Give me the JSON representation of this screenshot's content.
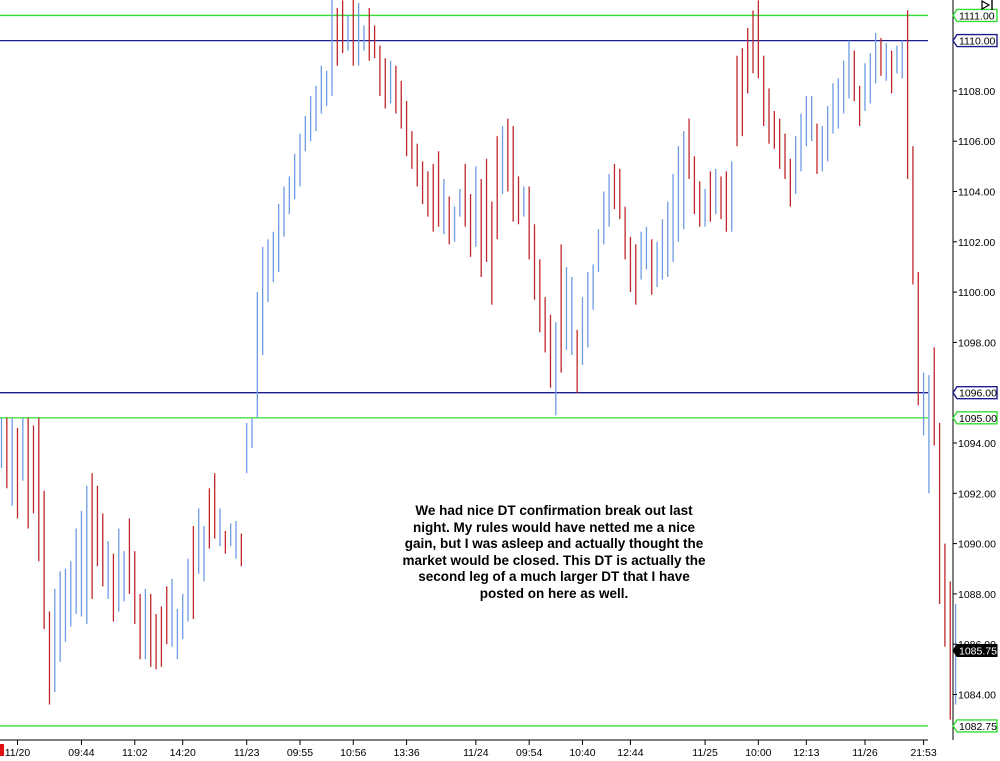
{
  "chart_data": {
    "type": "bar",
    "style": "ohlc-bars",
    "ylim": [
      1082.0,
      1112.6
    ],
    "y_ticks": [
      "1084.00",
      "1086.00",
      "1088.00",
      "1090.00",
      "1092.00",
      "1094.00",
      "1098.00",
      "1100.00",
      "1102.00",
      "1104.00",
      "1106.00",
      "1108.00"
    ],
    "x_ticks": [
      {
        "label": "11/20",
        "bar": 3
      },
      {
        "label": "09:44",
        "bar": 15
      },
      {
        "label": "11:02",
        "bar": 25
      },
      {
        "label": "14:20",
        "bar": 34
      },
      {
        "label": "11/23",
        "bar": 46
      },
      {
        "label": "09:55",
        "bar": 56
      },
      {
        "label": "10:56",
        "bar": 66
      },
      {
        "label": "13:36",
        "bar": 76
      },
      {
        "label": "11/24",
        "bar": 89
      },
      {
        "label": "09:54",
        "bar": 99
      },
      {
        "label": "10:40",
        "bar": 109
      },
      {
        "label": "12:44",
        "bar": 118
      },
      {
        "label": "11/25",
        "bar": 132
      },
      {
        "label": "10:00",
        "bar": 142
      },
      {
        "label": "12:13",
        "bar": 151
      },
      {
        "label": "11/26",
        "bar": 162
      },
      {
        "label": "21:53",
        "bar": 173
      }
    ],
    "horizontal_lines": [
      {
        "value": 1111.0,
        "label": "1111.00",
        "color": "#33dd33"
      },
      {
        "value": 1110.0,
        "label": "1110.00",
        "color": "#1c1c8c"
      },
      {
        "value": 1096.0,
        "label": "1096.00",
        "color": "#1c1c8c"
      },
      {
        "value": 1095.0,
        "label": "1095.00",
        "color": "#33dd33"
      },
      {
        "value": 1082.75,
        "label": "1082.75",
        "color": "#33dd33"
      }
    ],
    "last_price": {
      "value": 1085.75,
      "label": "1085.75"
    },
    "colors": {
      "up": "#6e9be6",
      "down": "#c0262b"
    },
    "bars": [
      {
        "l": 1093.0,
        "h": 1095.0,
        "d": "up"
      },
      {
        "l": 1092.2,
        "h": 1095.0,
        "d": "down"
      },
      {
        "l": 1091.5,
        "h": 1095.0,
        "d": "up"
      },
      {
        "l": 1091.0,
        "h": 1094.6,
        "d": "down"
      },
      {
        "l": 1092.5,
        "h": 1095.0,
        "d": "up"
      },
      {
        "l": 1090.6,
        "h": 1095.0,
        "d": "down"
      },
      {
        "l": 1091.2,
        "h": 1094.7,
        "d": "down"
      },
      {
        "l": 1089.3,
        "h": 1095.0,
        "d": "down"
      },
      {
        "l": 1086.6,
        "h": 1092.1,
        "d": "down"
      },
      {
        "l": 1083.6,
        "h": 1087.3,
        "d": "down"
      },
      {
        "l": 1084.1,
        "h": 1088.2,
        "d": "up"
      },
      {
        "l": 1085.3,
        "h": 1088.9,
        "d": "up"
      },
      {
        "l": 1086.1,
        "h": 1089.0,
        "d": "up"
      },
      {
        "l": 1086.7,
        "h": 1089.3,
        "d": "up"
      },
      {
        "l": 1087.2,
        "h": 1090.6,
        "d": "up"
      },
      {
        "l": 1087.1,
        "h": 1091.3,
        "d": "up"
      },
      {
        "l": 1086.8,
        "h": 1092.3,
        "d": "up"
      },
      {
        "l": 1087.8,
        "h": 1092.8,
        "d": "down"
      },
      {
        "l": 1089.1,
        "h": 1092.3,
        "d": "down"
      },
      {
        "l": 1088.3,
        "h": 1091.2,
        "d": "down"
      },
      {
        "l": 1087.8,
        "h": 1090.1,
        "d": "up"
      },
      {
        "l": 1086.9,
        "h": 1089.6,
        "d": "down"
      },
      {
        "l": 1087.3,
        "h": 1090.6,
        "d": "up"
      },
      {
        "l": 1087.7,
        "h": 1089.7,
        "d": "up"
      },
      {
        "l": 1088.0,
        "h": 1091.0,
        "d": "down"
      },
      {
        "l": 1086.8,
        "h": 1089.7,
        "d": "down"
      },
      {
        "l": 1085.4,
        "h": 1088.0,
        "d": "down"
      },
      {
        "l": 1085.4,
        "h": 1088.2,
        "d": "up"
      },
      {
        "l": 1085.1,
        "h": 1088.0,
        "d": "down"
      },
      {
        "l": 1085.0,
        "h": 1087.2,
        "d": "down"
      },
      {
        "l": 1085.1,
        "h": 1087.5,
        "d": "down"
      },
      {
        "l": 1086.0,
        "h": 1088.3,
        "d": "down"
      },
      {
        "l": 1085.9,
        "h": 1088.6,
        "d": "up"
      },
      {
        "l": 1085.4,
        "h": 1087.4,
        "d": "up"
      },
      {
        "l": 1086.2,
        "h": 1088.0,
        "d": "up"
      },
      {
        "l": 1086.9,
        "h": 1089.4,
        "d": "up"
      },
      {
        "l": 1087.0,
        "h": 1090.7,
        "d": "down"
      },
      {
        "l": 1088.8,
        "h": 1091.4,
        "d": "up"
      },
      {
        "l": 1088.5,
        "h": 1090.7,
        "d": "up"
      },
      {
        "l": 1089.8,
        "h": 1092.2,
        "d": "down"
      },
      {
        "l": 1090.2,
        "h": 1092.8,
        "d": "down"
      },
      {
        "l": 1089.9,
        "h": 1091.4,
        "d": "up"
      },
      {
        "l": 1089.6,
        "h": 1090.5,
        "d": "down"
      },
      {
        "l": 1089.9,
        "h": 1090.8,
        "d": "up"
      },
      {
        "l": 1089.4,
        "h": 1090.9,
        "d": "up"
      },
      {
        "l": 1089.1,
        "h": 1090.4,
        "d": "down"
      },
      {
        "l": 1092.8,
        "h": 1094.8,
        "d": "up"
      },
      {
        "l": 1093.8,
        "h": 1095.0,
        "d": "up"
      },
      {
        "l": 1095.0,
        "h": 1100.0,
        "d": "up"
      },
      {
        "l": 1097.5,
        "h": 1101.8,
        "d": "up"
      },
      {
        "l": 1099.6,
        "h": 1102.1,
        "d": "up"
      },
      {
        "l": 1100.4,
        "h": 1102.4,
        "d": "up"
      },
      {
        "l": 1100.8,
        "h": 1103.5,
        "d": "up"
      },
      {
        "l": 1102.2,
        "h": 1104.2,
        "d": "up"
      },
      {
        "l": 1103.1,
        "h": 1104.6,
        "d": "up"
      },
      {
        "l": 1103.7,
        "h": 1105.5,
        "d": "up"
      },
      {
        "l": 1104.2,
        "h": 1106.3,
        "d": "up"
      },
      {
        "l": 1105.6,
        "h": 1107.0,
        "d": "up"
      },
      {
        "l": 1106.0,
        "h": 1107.8,
        "d": "up"
      },
      {
        "l": 1106.4,
        "h": 1108.2,
        "d": "up"
      },
      {
        "l": 1107.1,
        "h": 1109.0,
        "d": "up"
      },
      {
        "l": 1107.4,
        "h": 1108.8,
        "d": "up"
      },
      {
        "l": 1107.8,
        "h": 1112.4,
        "d": "up"
      },
      {
        "l": 1109.0,
        "h": 1111.3,
        "d": "down"
      },
      {
        "l": 1109.5,
        "h": 1111.6,
        "d": "down"
      },
      {
        "l": 1109.6,
        "h": 1111.0,
        "d": "up"
      },
      {
        "l": 1109.0,
        "h": 1112.2,
        "d": "down"
      },
      {
        "l": 1109.0,
        "h": 1111.5,
        "d": "up"
      },
      {
        "l": 1109.6,
        "h": 1110.6,
        "d": "up"
      },
      {
        "l": 1109.2,
        "h": 1111.3,
        "d": "down"
      },
      {
        "l": 1109.3,
        "h": 1110.6,
        "d": "down"
      },
      {
        "l": 1107.8,
        "h": 1109.8,
        "d": "down"
      },
      {
        "l": 1107.3,
        "h": 1109.3,
        "d": "down"
      },
      {
        "l": 1107.5,
        "h": 1109.2,
        "d": "up"
      },
      {
        "l": 1107.1,
        "h": 1109.0,
        "d": "down"
      },
      {
        "l": 1106.5,
        "h": 1108.4,
        "d": "down"
      },
      {
        "l": 1105.4,
        "h": 1107.6,
        "d": "down"
      },
      {
        "l": 1104.9,
        "h": 1106.4,
        "d": "down"
      },
      {
        "l": 1104.2,
        "h": 1105.9,
        "d": "down"
      },
      {
        "l": 1103.5,
        "h": 1105.2,
        "d": "down"
      },
      {
        "l": 1103.0,
        "h": 1104.8,
        "d": "down"
      },
      {
        "l": 1102.4,
        "h": 1105.1,
        "d": "down"
      },
      {
        "l": 1102.6,
        "h": 1105.6,
        "d": "down"
      },
      {
        "l": 1102.3,
        "h": 1104.5,
        "d": "up"
      },
      {
        "l": 1101.9,
        "h": 1103.8,
        "d": "down"
      },
      {
        "l": 1102.0,
        "h": 1103.4,
        "d": "up"
      },
      {
        "l": 1103.0,
        "h": 1104.1,
        "d": "up"
      },
      {
        "l": 1102.6,
        "h": 1105.1,
        "d": "down"
      },
      {
        "l": 1101.4,
        "h": 1103.9,
        "d": "down"
      },
      {
        "l": 1101.8,
        "h": 1105.0,
        "d": "up"
      },
      {
        "l": 1100.6,
        "h": 1104.5,
        "d": "down"
      },
      {
        "l": 1101.2,
        "h": 1105.3,
        "d": "down"
      },
      {
        "l": 1099.5,
        "h": 1103.6,
        "d": "down"
      },
      {
        "l": 1102.1,
        "h": 1106.2,
        "d": "down"
      },
      {
        "l": 1103.9,
        "h": 1106.6,
        "d": "up"
      },
      {
        "l": 1104.0,
        "h": 1106.9,
        "d": "down"
      },
      {
        "l": 1102.8,
        "h": 1106.6,
        "d": "down"
      },
      {
        "l": 1102.7,
        "h": 1104.6,
        "d": "down"
      },
      {
        "l": 1103.0,
        "h": 1104.2,
        "d": "up"
      },
      {
        "l": 1101.3,
        "h": 1104.2,
        "d": "down"
      },
      {
        "l": 1099.7,
        "h": 1102.7,
        "d": "down"
      },
      {
        "l": 1098.4,
        "h": 1101.3,
        "d": "down"
      },
      {
        "l": 1097.6,
        "h": 1099.8,
        "d": "down"
      },
      {
        "l": 1096.2,
        "h": 1099.1,
        "d": "down"
      },
      {
        "l": 1095.1,
        "h": 1098.8,
        "d": "up"
      },
      {
        "l": 1096.8,
        "h": 1101.9,
        "d": "down"
      },
      {
        "l": 1097.7,
        "h": 1101.0,
        "d": "up"
      },
      {
        "l": 1097.5,
        "h": 1100.6,
        "d": "up"
      },
      {
        "l": 1096.0,
        "h": 1098.5,
        "d": "down"
      },
      {
        "l": 1097.1,
        "h": 1099.8,
        "d": "up"
      },
      {
        "l": 1097.8,
        "h": 1100.8,
        "d": "up"
      },
      {
        "l": 1099.3,
        "h": 1101.1,
        "d": "up"
      },
      {
        "l": 1100.8,
        "h": 1102.5,
        "d": "up"
      },
      {
        "l": 1101.9,
        "h": 1104.0,
        "d": "up"
      },
      {
        "l": 1102.6,
        "h": 1104.7,
        "d": "up"
      },
      {
        "l": 1103.3,
        "h": 1105.1,
        "d": "down"
      },
      {
        "l": 1102.9,
        "h": 1104.9,
        "d": "down"
      },
      {
        "l": 1101.3,
        "h": 1103.4,
        "d": "down"
      },
      {
        "l": 1100.0,
        "h": 1102.2,
        "d": "down"
      },
      {
        "l": 1099.5,
        "h": 1101.9,
        "d": "down"
      },
      {
        "l": 1100.5,
        "h": 1102.4,
        "d": "up"
      },
      {
        "l": 1100.9,
        "h": 1102.6,
        "d": "up"
      },
      {
        "l": 1099.9,
        "h": 1102.1,
        "d": "down"
      },
      {
        "l": 1100.2,
        "h": 1102.0,
        "d": "up"
      },
      {
        "l": 1100.5,
        "h": 1102.9,
        "d": "up"
      },
      {
        "l": 1100.6,
        "h": 1103.6,
        "d": "up"
      },
      {
        "l": 1101.2,
        "h": 1104.7,
        "d": "up"
      },
      {
        "l": 1102.0,
        "h": 1105.8,
        "d": "up"
      },
      {
        "l": 1102.5,
        "h": 1106.4,
        "d": "up"
      },
      {
        "l": 1104.5,
        "h": 1106.9,
        "d": "down"
      },
      {
        "l": 1103.1,
        "h": 1105.4,
        "d": "down"
      },
      {
        "l": 1102.6,
        "h": 1104.4,
        "d": "down"
      },
      {
        "l": 1102.6,
        "h": 1104.1,
        "d": "up"
      },
      {
        "l": 1102.8,
        "h": 1104.8,
        "d": "down"
      },
      {
        "l": 1103.1,
        "h": 1104.9,
        "d": "up"
      },
      {
        "l": 1102.9,
        "h": 1104.6,
        "d": "down"
      },
      {
        "l": 1102.4,
        "h": 1104.8,
        "d": "down"
      },
      {
        "l": 1102.4,
        "h": 1105.2,
        "d": "up"
      },
      {
        "l": 1105.8,
        "h": 1109.4,
        "d": "down"
      },
      {
        "l": 1106.2,
        "h": 1109.7,
        "d": "down"
      },
      {
        "l": 1107.9,
        "h": 1110.5,
        "d": "down"
      },
      {
        "l": 1108.7,
        "h": 1111.2,
        "d": "down"
      },
      {
        "l": 1108.5,
        "h": 1111.6,
        "d": "down"
      },
      {
        "l": 1106.6,
        "h": 1109.4,
        "d": "down"
      },
      {
        "l": 1105.9,
        "h": 1108.1,
        "d": "down"
      },
      {
        "l": 1105.7,
        "h": 1107.2,
        "d": "down"
      },
      {
        "l": 1104.9,
        "h": 1106.9,
        "d": "down"
      },
      {
        "l": 1104.5,
        "h": 1106.3,
        "d": "down"
      },
      {
        "l": 1103.4,
        "h": 1105.3,
        "d": "down"
      },
      {
        "l": 1103.9,
        "h": 1106.2,
        "d": "up"
      },
      {
        "l": 1104.8,
        "h": 1107.1,
        "d": "up"
      },
      {
        "l": 1105.8,
        "h": 1107.8,
        "d": "up"
      },
      {
        "l": 1106.0,
        "h": 1107.8,
        "d": "up"
      },
      {
        "l": 1104.7,
        "h": 1106.7,
        "d": "down"
      },
      {
        "l": 1104.8,
        "h": 1106.6,
        "d": "up"
      },
      {
        "l": 1105.2,
        "h": 1107.4,
        "d": "up"
      },
      {
        "l": 1106.3,
        "h": 1108.3,
        "d": "up"
      },
      {
        "l": 1106.5,
        "h": 1108.5,
        "d": "up"
      },
      {
        "l": 1107.1,
        "h": 1109.2,
        "d": "up"
      },
      {
        "l": 1107.7,
        "h": 1110.0,
        "d": "up"
      },
      {
        "l": 1107.6,
        "h": 1109.6,
        "d": "down"
      },
      {
        "l": 1106.6,
        "h": 1108.2,
        "d": "down"
      },
      {
        "l": 1107.2,
        "h": 1109.1,
        "d": "up"
      },
      {
        "l": 1107.5,
        "h": 1109.5,
        "d": "up"
      },
      {
        "l": 1108.3,
        "h": 1110.3,
        "d": "up"
      },
      {
        "l": 1108.6,
        "h": 1110.1,
        "d": "down"
      },
      {
        "l": 1108.4,
        "h": 1109.9,
        "d": "up"
      },
      {
        "l": 1107.9,
        "h": 1109.6,
        "d": "down"
      },
      {
        "l": 1108.7,
        "h": 1109.8,
        "d": "up"
      },
      {
        "l": 1108.5,
        "h": 1110.0,
        "d": "up"
      },
      {
        "l": 1104.5,
        "h": 1111.2,
        "d": "down"
      },
      {
        "l": 1100.3,
        "h": 1105.8,
        "d": "down"
      },
      {
        "l": 1095.5,
        "h": 1100.8,
        "d": "down"
      },
      {
        "l": 1094.3,
        "h": 1096.8,
        "d": "up"
      },
      {
        "l": 1092.0,
        "h": 1096.7,
        "d": "up"
      },
      {
        "l": 1093.9,
        "h": 1097.8,
        "d": "down"
      },
      {
        "l": 1087.6,
        "h": 1094.8,
        "d": "down"
      },
      {
        "l": 1085.9,
        "h": 1090.0,
        "d": "down"
      },
      {
        "l": 1083.0,
        "h": 1088.5,
        "d": "down"
      },
      {
        "l": 1083.6,
        "h": 1087.6,
        "d": "up"
      }
    ]
  },
  "annotation": {
    "lines": [
      "We had nice DT confirmation break out last",
      "night. My rules would have netted me a nice",
      "gain, but I was asleep and actually thought the",
      "market would be closed. This DT is actually the",
      "second leg of a much larger DT that I have",
      "posted on here as well."
    ]
  }
}
